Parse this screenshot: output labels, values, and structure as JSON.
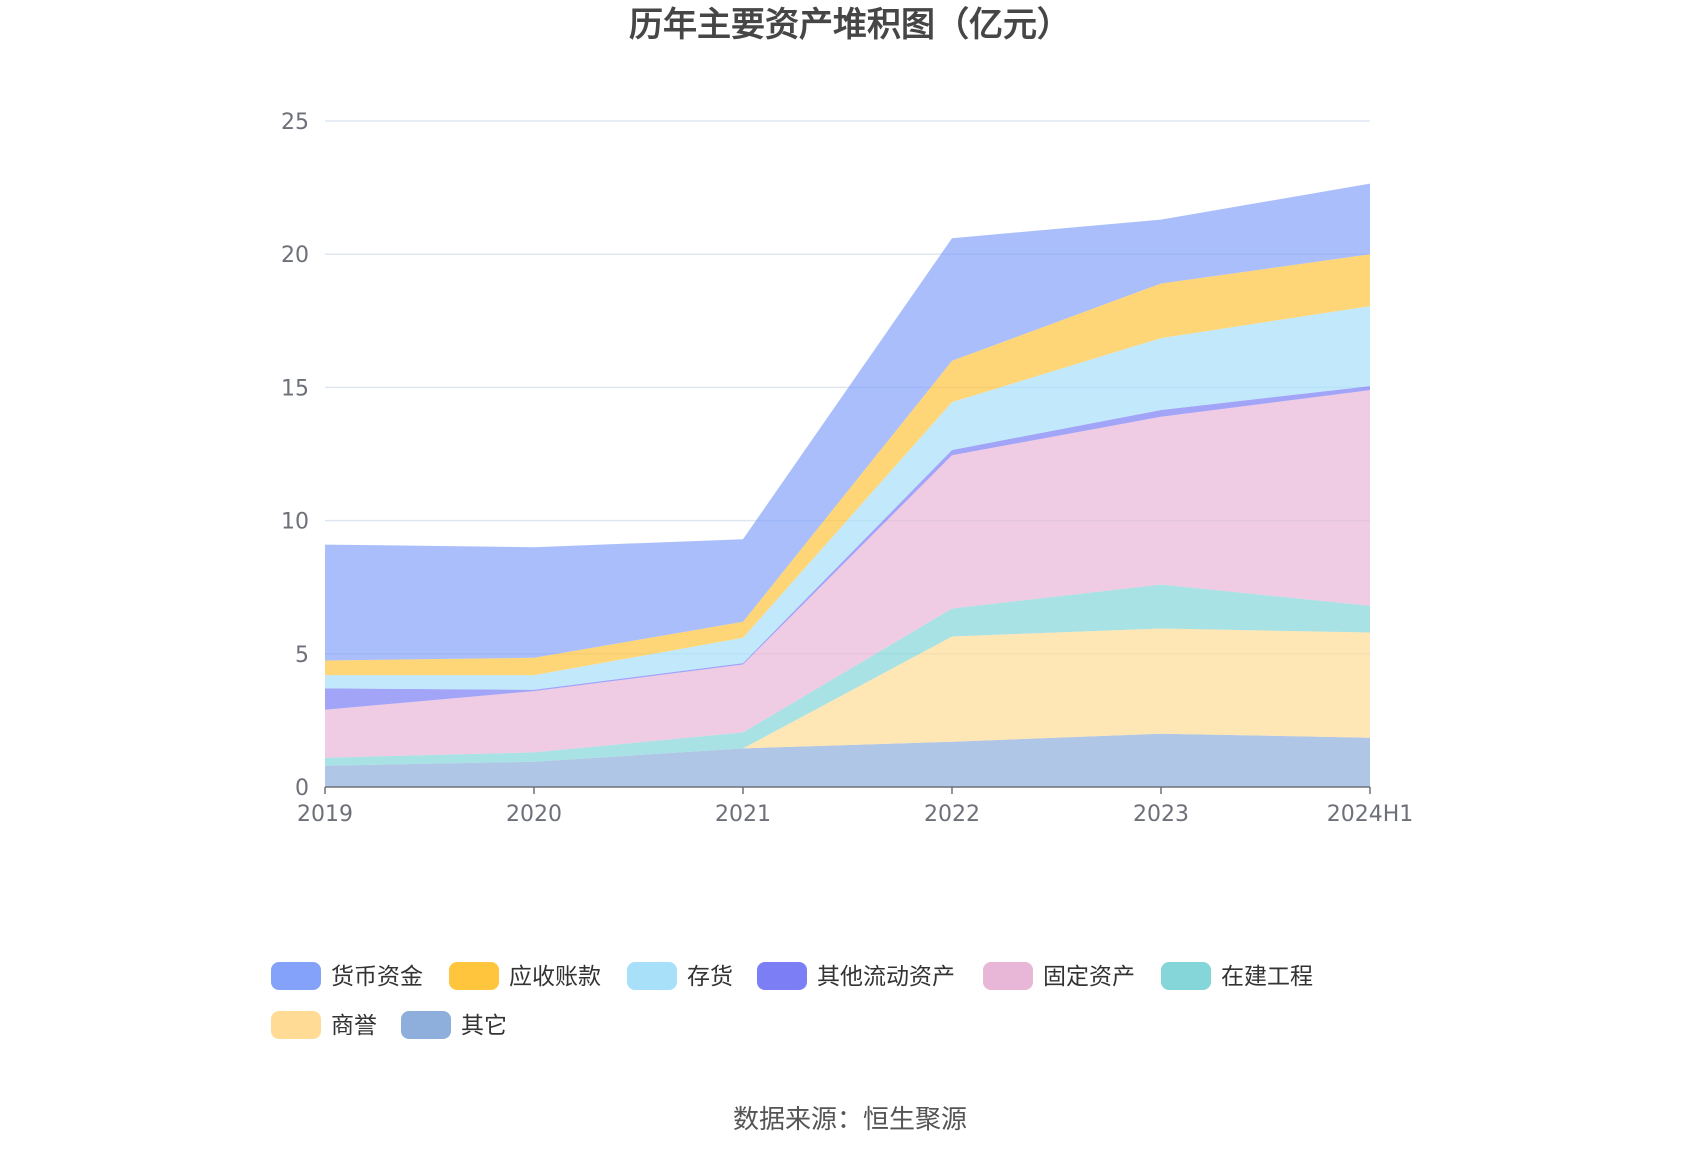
{
  "chart_data": {
    "type": "area",
    "stacked": true,
    "title": "历年主要资产堆积图（亿元）",
    "x": [
      "2019",
      "2020",
      "2021",
      "2022",
      "2023",
      "2024H1"
    ],
    "ylim": [
      0,
      25
    ],
    "yticks": [
      "0",
      "5",
      "10",
      "15",
      "20",
      "25"
    ],
    "grid": true,
    "legend_position": "bottom",
    "series": [
      {
        "name": "其它",
        "color": "#8eaedc",
        "values": [
          0.8,
          0.95,
          1.45,
          1.7,
          2.0,
          1.85
        ]
      },
      {
        "name": "商誉",
        "color": "#ffdb95",
        "values": [
          0.0,
          0.0,
          0.0,
          3.95,
          3.95,
          3.95
        ]
      },
      {
        "name": "在建工程",
        "color": "#85d6d8",
        "values": [
          0.3,
          0.35,
          0.6,
          1.05,
          1.65,
          1.0
        ]
      },
      {
        "name": "固定资产",
        "color": "#e8b6d7",
        "values": [
          1.8,
          2.3,
          2.55,
          5.75,
          6.3,
          8.1
        ]
      },
      {
        "name": "其他流动资产",
        "color": "#7b7ef5",
        "values": [
          0.8,
          0.05,
          0.05,
          0.2,
          0.25,
          0.15
        ]
      },
      {
        "name": "存货",
        "color": "#a8dff9",
        "values": [
          0.5,
          0.55,
          0.95,
          1.8,
          2.7,
          3.0
        ]
      },
      {
        "name": "应收账款",
        "color": "#ffc53d",
        "values": [
          0.55,
          0.65,
          0.6,
          1.55,
          2.05,
          1.95
        ]
      },
      {
        "name": "货币资金",
        "color": "#84a2fa",
        "values": [
          4.35,
          4.15,
          3.1,
          4.6,
          2.4,
          2.65
        ]
      }
    ],
    "legend_order": [
      "货币资金",
      "应收账款",
      "存货",
      "其他流动资产",
      "固定资产",
      "在建工程",
      "商誉",
      "其它"
    ]
  },
  "source": "数据来源：恒生聚源"
}
